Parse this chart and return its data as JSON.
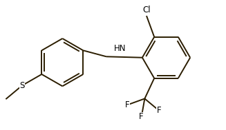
{
  "bg_color": "#ffffff",
  "line_color": "#2b1d00",
  "text_color": "#000000",
  "linewidth": 1.4,
  "fontsize": 8.5,
  "figsize": [
    3.27,
    1.89
  ],
  "dpi": 100,
  "xlim": [
    0.0,
    8.2
  ],
  "ylim": [
    0.0,
    4.8
  ]
}
